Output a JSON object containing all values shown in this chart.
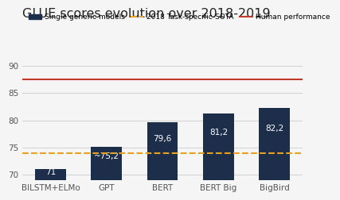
{
  "title": "GLUE scores evolution over 2018-2019",
  "categories": [
    "BILSTM+ELMo",
    "GPT",
    "BERT",
    "BERT Big",
    "BigBird"
  ],
  "values": [
    71,
    75.2,
    79.6,
    81.2,
    82.2
  ],
  "bar_labels": [
    "71",
    "~75,2",
    "79,6",
    "81,2",
    "82,2"
  ],
  "bar_color": "#1c2e4a",
  "sota_line": 74.0,
  "human_line": 87.5,
  "sota_color": "#e8a020",
  "human_color": "#c0392b",
  "ylim_min": 69,
  "ylim_max": 92,
  "yticks": [
    70,
    75,
    80,
    85,
    90
  ],
  "background_color": "#f5f5f5",
  "legend_bar_label": "Single generic models",
  "legend_sota_label": "2018 Task-specific-SOTA",
  "legend_human_label": "Human performance",
  "title_fontsize": 11.5,
  "label_fontsize": 7.5,
  "tick_fontsize": 7.5
}
